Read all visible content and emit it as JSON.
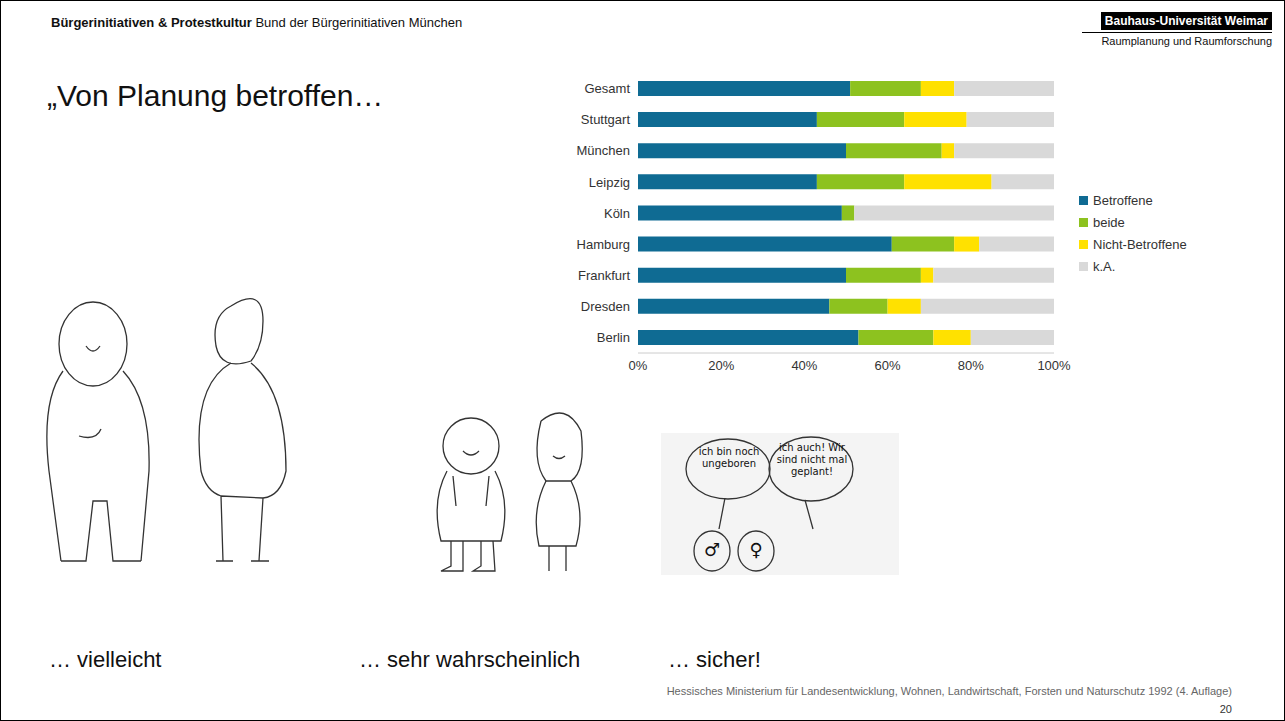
{
  "header": {
    "title": "Bürgerinitiativen & Protestkultur",
    "subtitle": "Bund der Bürgerinitiativen München",
    "institution": "Bauhaus-Universität Weimar",
    "department": "Raumplanung und Raumforschung"
  },
  "slide_title": "„Von Planung betroffen…",
  "chart_data": {
    "type": "bar",
    "orientation": "horizontal",
    "stacked": true,
    "grid": false,
    "legend": "right",
    "categories": [
      "Gesamt",
      "Stuttgart",
      "München",
      "Leipzig",
      "Köln",
      "Hamburg",
      "Frankfurt",
      "Dresden",
      "Berlin"
    ],
    "series": [
      {
        "name": "Betroffene",
        "color": "#0f6b93",
        "values": [
          51,
          43,
          50,
          43,
          49,
          61,
          50,
          46,
          53
        ]
      },
      {
        "name": "beide",
        "color": "#8dc21f",
        "values": [
          17,
          21,
          23,
          21,
          3,
          15,
          18,
          14,
          18
        ]
      },
      {
        "name": "Nicht-Betroffene",
        "color": "#ffe100",
        "values": [
          8,
          15,
          3,
          21,
          0,
          6,
          3,
          8,
          9
        ]
      },
      {
        "name": "k.A.",
        "color": "#d9d9d9",
        "values": [
          24,
          21,
          24,
          15,
          48,
          18,
          29,
          32,
          20
        ]
      }
    ],
    "xlim": [
      0,
      100
    ],
    "xticks": [
      {
        "value": 0,
        "label": "0%"
      },
      {
        "value": 20,
        "label": "20%"
      },
      {
        "value": 40,
        "label": "40%"
      },
      {
        "value": 60,
        "label": "60%"
      },
      {
        "value": 80,
        "label": "80%"
      },
      {
        "value": 100,
        "label": "100%"
      }
    ]
  },
  "illustrations": [
    {
      "caption": "… vielleicht"
    },
    {
      "caption": "… sehr wahrscheinlich"
    },
    {
      "caption": "… sicher!",
      "speech": [
        "ich bin noch ungeboren",
        "ich auch! Wir sind nicht mal geplant!"
      ],
      "symbols": [
        "♂",
        "♀"
      ]
    }
  ],
  "source": "Hessisches Ministerium für Landesentwicklung, Wohnen, Landwirtschaft, Forsten und Naturschutz 1992 (4. Auflage)",
  "page": 20
}
